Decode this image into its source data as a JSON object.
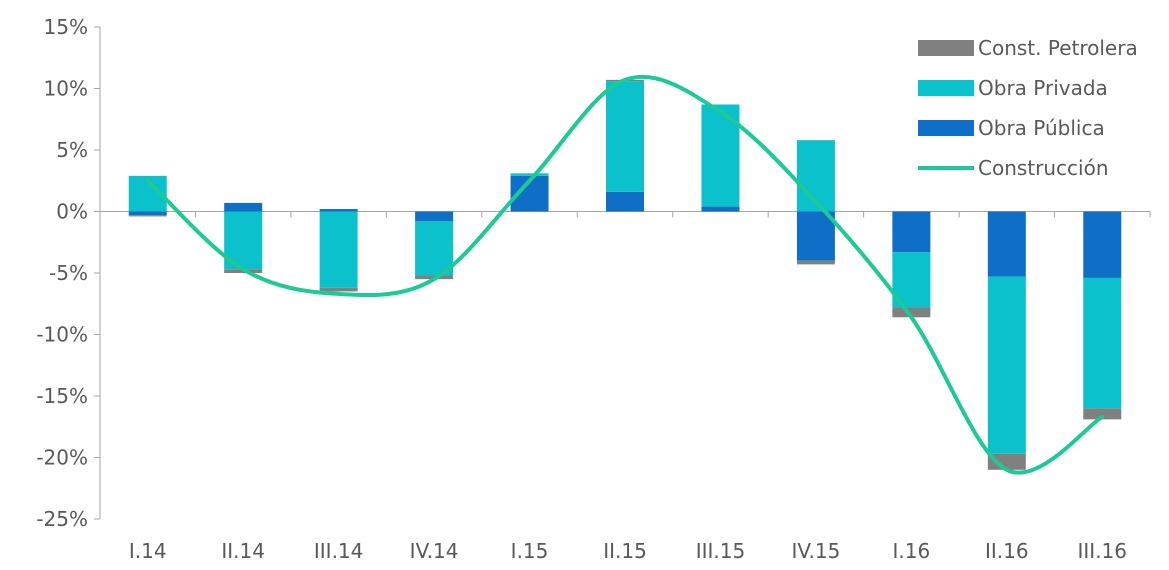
{
  "chart_data": {
    "type": "bar",
    "stacked": true,
    "categories": [
      "I.14",
      "II.14",
      "III.14",
      "IV.14",
      "I.15",
      "II.15",
      "III.15",
      "IV.15",
      "I.16",
      "II.16",
      "III.16"
    ],
    "series": [
      {
        "name": "Obra Pública",
        "type": "bar",
        "color": "#0F6FC6",
        "values": [
          -0.3,
          0.7,
          0.2,
          -0.8,
          2.9,
          1.6,
          0.4,
          -4.0,
          -3.3,
          -5.3,
          -5.4
        ]
      },
      {
        "name": "Obra Privada",
        "type": "bar",
        "color": "#0BC1CC",
        "values": [
          2.9,
          -4.7,
          -6.2,
          -4.4,
          0.2,
          9.0,
          8.3,
          5.8,
          -4.5,
          -14.4,
          -10.6
        ]
      },
      {
        "name": "Const. Petrolera",
        "type": "bar",
        "color": "#808080",
        "values": [
          -0.1,
          -0.3,
          -0.3,
          -0.3,
          0.0,
          0.1,
          0.0,
          -0.3,
          -0.8,
          -1.3,
          -0.9
        ]
      },
      {
        "name": "Construcción",
        "type": "line",
        "color": "#1DC997",
        "values": [
          2.5,
          -4.7,
          -6.7,
          -5.5,
          2.5,
          10.7,
          8.1,
          0.8,
          -8.6,
          -21.0,
          -16.7
        ]
      }
    ],
    "ylim": [
      -25,
      15
    ],
    "yticks": [
      15,
      10,
      5,
      0,
      -5,
      -10,
      -15,
      -20,
      -25
    ],
    "ytick_labels": [
      "15%",
      "10%",
      "5%",
      "0%",
      "-5%",
      "-10%",
      "-15%",
      "-20%",
      "-25%"
    ],
    "legend": {
      "position": "top-right",
      "order": [
        "Const. Petrolera",
        "Obra Privada",
        "Obra Pública",
        "Construcción"
      ]
    }
  }
}
